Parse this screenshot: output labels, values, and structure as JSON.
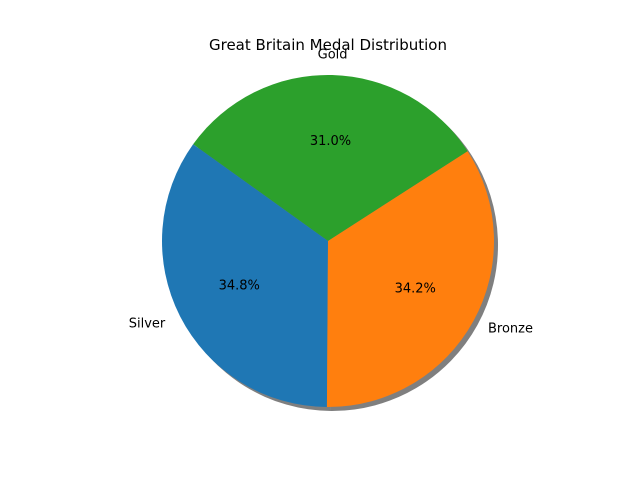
{
  "chart_data": {
    "type": "pie",
    "title": "Great Britain Medal Distribution",
    "slices": [
      {
        "label": "Gold",
        "value": 31.0,
        "pct_label": "31.0%",
        "color": "#2ca02c"
      },
      {
        "label": "Silver",
        "value": 34.8,
        "pct_label": "34.8%",
        "color": "#1f77b4"
      },
      {
        "label": "Bronze",
        "value": 34.2,
        "pct_label": "34.2%",
        "color": "#ff7f0e"
      }
    ],
    "shadow": true,
    "legend": "none"
  }
}
